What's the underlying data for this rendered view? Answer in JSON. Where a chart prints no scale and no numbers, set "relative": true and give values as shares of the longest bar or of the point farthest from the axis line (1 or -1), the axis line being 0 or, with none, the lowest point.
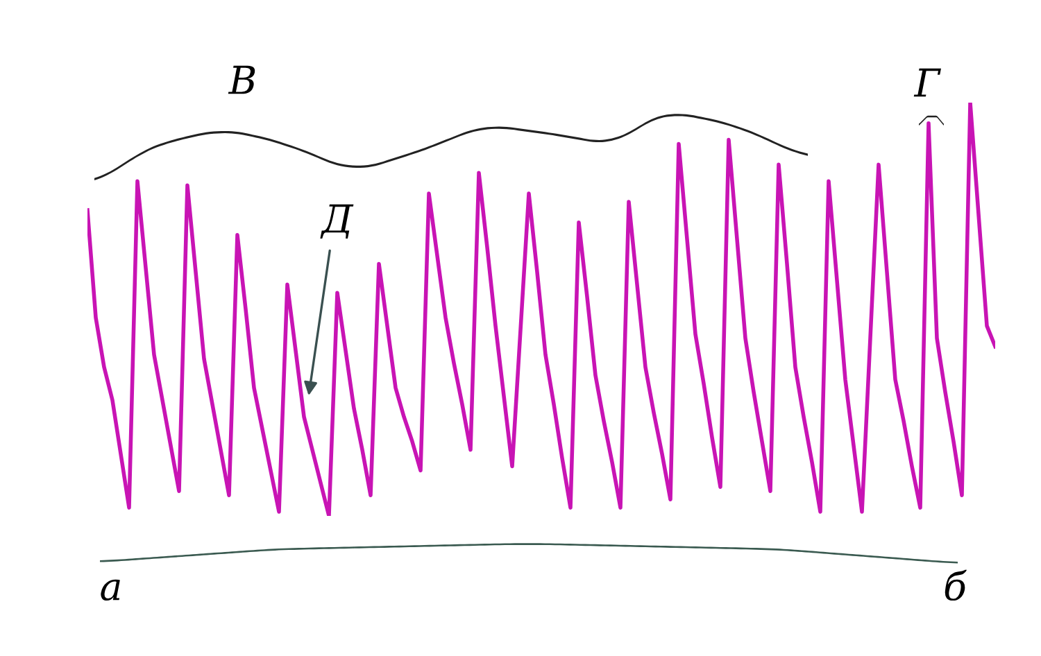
{
  "chart_data": {
    "type": "line",
    "relative": true,
    "annotations": [
      "В",
      "Г",
      "Д",
      "а",
      "б"
    ],
    "categories": [
      null,
      null,
      null,
      null,
      null,
      null,
      null,
      null,
      null,
      null,
      null,
      null,
      null,
      null,
      null,
      null,
      null,
      null,
      null,
      null,
      null,
      null,
      null,
      null,
      null,
      null,
      null,
      null,
      null,
      null,
      null,
      null,
      null,
      null,
      null,
      null,
      null,
      null,
      null,
      null,
      null,
      null,
      null,
      null,
      null,
      null,
      null,
      null,
      null,
      null,
      null,
      null,
      null,
      null,
      null,
      null,
      null,
      null,
      null,
      null,
      null,
      null,
      null,
      null,
      null,
      null,
      null,
      null,
      null,
      null,
      null,
      null,
      null,
      null,
      null,
      null,
      null,
      null,
      null,
      null,
      null,
      null,
      null,
      null,
      null,
      null,
      null,
      null,
      null,
      null,
      null,
      null,
      null,
      null,
      null,
      null,
      null,
      null,
      null,
      null,
      null,
      null,
      null,
      null,
      null,
      null,
      null,
      null,
      null,
      null
    ],
    "series": [
      {
        "color": "#c814b4",
        "values": [
          0.74,
          0.48,
          0.36,
          0.28,
          0.15,
          0.02,
          0.81,
          0.6,
          0.39,
          0.28,
          0.17,
          0.06,
          0.8,
          0.59,
          0.38,
          0.27,
          0.16,
          0.05,
          0.68,
          0.5,
          0.31,
          0.21,
          0.11,
          0.01,
          0.56,
          0.4,
          0.24,
          0.16,
          0.08,
          0,
          0.54,
          0.4,
          0.26,
          0.16,
          0.05,
          0.61,
          0.46,
          0.31,
          0.24,
          0.18,
          0.11,
          0.78,
          0.63,
          0.48,
          0.37,
          0.27,
          0.16,
          0.83,
          0.65,
          0.46,
          0.29,
          0.12,
          0.45,
          0.78,
          0.59,
          0.39,
          0.27,
          0.14,
          0.02,
          0.71,
          0.53,
          0.34,
          0.23,
          0.13,
          0.02,
          0.76,
          0.56,
          0.36,
          0.25,
          0.15,
          0.04,
          0.9,
          0.67,
          0.44,
          0.32,
          0.19,
          0.07,
          0.91,
          0.67,
          0.43,
          0.3,
          0.18,
          0.06,
          0.85,
          0.61,
          0.36,
          0.24,
          0.13,
          0.01,
          0.81,
          0.57,
          0.33,
          0.17,
          0.01,
          0.43,
          0.85,
          0.59,
          0.33,
          0.23,
          0.12,
          0.02,
          0.95,
          0.43,
          0.3,
          0.18,
          0.05,
          1,
          0.73,
          0.46,
          0.41
        ]
      }
    ]
  }
}
